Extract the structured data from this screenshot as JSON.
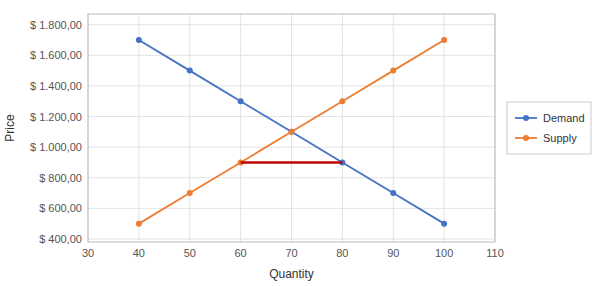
{
  "chart_data": {
    "type": "line",
    "xlabel": "Quantity",
    "ylabel": "Price",
    "xlim": [
      30,
      110
    ],
    "ylim": [
      380,
      1870
    ],
    "xticks": [
      30,
      40,
      50,
      60,
      70,
      80,
      90,
      100,
      110
    ],
    "yticks": [
      {
        "value": 400,
        "label": "$ 400,00"
      },
      {
        "value": 600,
        "label": "$ 600,00"
      },
      {
        "value": 800,
        "label": "$ 800,00"
      },
      {
        "value": 1000,
        "label": "$ 1.000,00"
      },
      {
        "value": 1200,
        "label": "$ 1.200,00"
      },
      {
        "value": 1400,
        "label": "$ 1.400,00"
      },
      {
        "value": 1600,
        "label": "$ 1.600,00"
      },
      {
        "value": 1800,
        "label": "$ 1.800,00"
      }
    ],
    "grid": true,
    "legend": "right",
    "series": [
      {
        "name": "Demand",
        "color": "#4472C4",
        "marker": "circle",
        "x": [
          40,
          50,
          60,
          70,
          80,
          90,
          100
        ],
        "values": [
          1700,
          1500,
          1300,
          1100,
          900,
          700,
          500
        ]
      },
      {
        "name": "Supply",
        "color": "#ED7D31",
        "marker": "circle",
        "x": [
          40,
          50,
          60,
          70,
          80,
          90,
          100
        ],
        "values": [
          500,
          700,
          900,
          1100,
          1300,
          1500,
          1700
        ]
      },
      {
        "color": "#C00000",
        "marker": "none",
        "x": [
          60,
          80
        ],
        "values": [
          900,
          900
        ]
      }
    ]
  }
}
